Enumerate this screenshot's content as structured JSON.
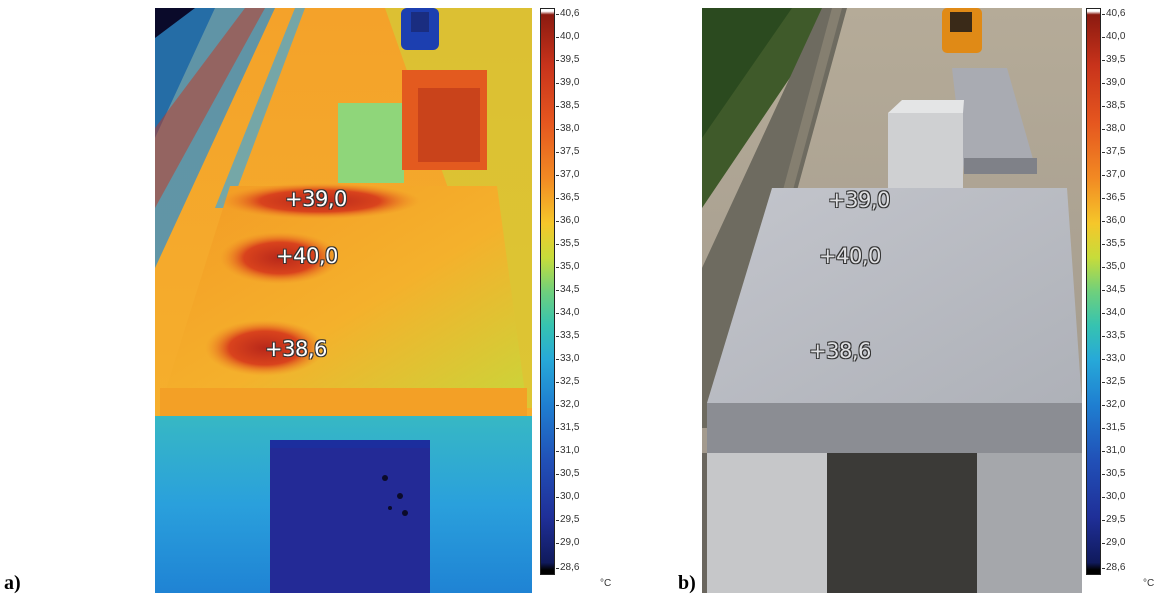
{
  "panels": [
    {
      "label": "a)",
      "type": "thermal",
      "spots": [
        "+39,0",
        "+40,0",
        "+38,6"
      ],
      "scale_unit": "°C",
      "scale_ticks": [
        "40,6",
        "40,0",
        "39,5",
        "39,0",
        "38,5",
        "38,0",
        "37,5",
        "37,0",
        "36,5",
        "36,0",
        "35,5",
        "35,0",
        "34,5",
        "34,0",
        "33,5",
        "33,0",
        "32,5",
        "32,0",
        "31,5",
        "31,0",
        "30,5",
        "30,0",
        "29,5",
        "29,0",
        "28,6"
      ]
    },
    {
      "label": "b)",
      "type": "photo",
      "spots": [
        "+39,0",
        "+40,0",
        "+38,6"
      ],
      "scale_unit": "°C",
      "scale_ticks": [
        "40,6",
        "40,0",
        "39,5",
        "39,0",
        "38,5",
        "38,0",
        "37,5",
        "37,0",
        "36,5",
        "36,0",
        "35,5",
        "35,0",
        "34,5",
        "34,0",
        "33,5",
        "33,0",
        "32,5",
        "32,0",
        "31,5",
        "31,0",
        "30,5",
        "30,0",
        "29,5",
        "29,0",
        "28,6"
      ]
    }
  ],
  "colors": {
    "hot": "#c8331b",
    "warm": "#f28a23",
    "mid": "#6fd07c",
    "cool": "#27a9d8",
    "cold": "#1f2f98",
    "concrete": "#b9bbc1"
  }
}
